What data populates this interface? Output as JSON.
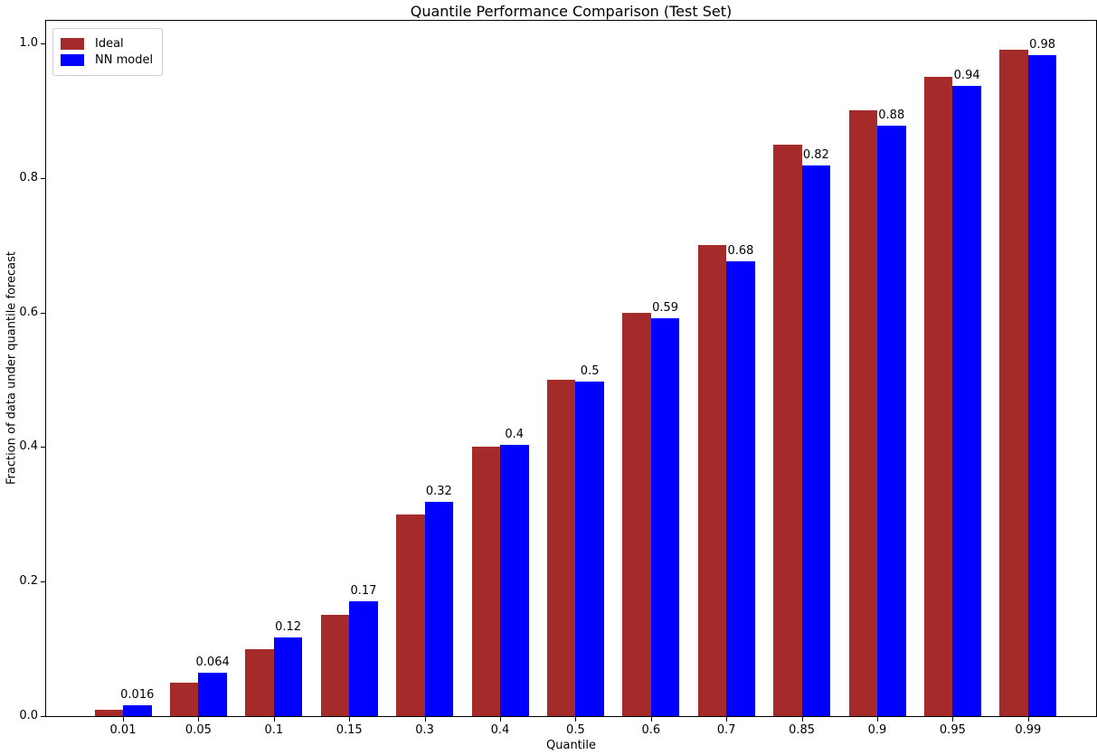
{
  "chart_data": {
    "type": "bar",
    "title": "Quantile Performance Comparison (Test Set)",
    "xlabel": "Quantile",
    "ylabel": "Fraction of data under quantile forecast",
    "categories": [
      "0.01",
      "0.05",
      "0.1",
      "0.15",
      "0.3",
      "0.4",
      "0.5",
      "0.6",
      "0.7",
      "0.85",
      "0.9",
      "0.95",
      "0.99"
    ],
    "series": [
      {
        "name": "Ideal",
        "color": "#a52a2a",
        "values": [
          0.01,
          0.05,
          0.1,
          0.15,
          0.3,
          0.4,
          0.5,
          0.6,
          0.7,
          0.85,
          0.9,
          0.95,
          0.99
        ]
      },
      {
        "name": "NN model",
        "color": "#0000ff",
        "values": [
          0.016,
          0.064,
          0.117,
          0.171,
          0.319,
          0.403,
          0.497,
          0.592,
          0.676,
          0.818,
          0.878,
          0.937,
          0.983
        ],
        "bar_labels": [
          "0.016",
          "0.064",
          "0.12",
          "0.17",
          "0.32",
          "0.4",
          "0.5",
          "0.59",
          "0.68",
          "0.82",
          "0.88",
          "0.94",
          "0.98"
        ]
      }
    ],
    "ytick_labels": [
      "0.0",
      "0.2",
      "0.4",
      "0.6",
      "0.8",
      "1.0"
    ],
    "yticks": [
      0.0,
      0.2,
      0.4,
      0.6,
      0.8,
      1.0
    ],
    "ylim": [
      0,
      1.035
    ],
    "grid": false,
    "legend_position": "upper left",
    "background_color": "#ffffff",
    "text_color": "#000000"
  }
}
